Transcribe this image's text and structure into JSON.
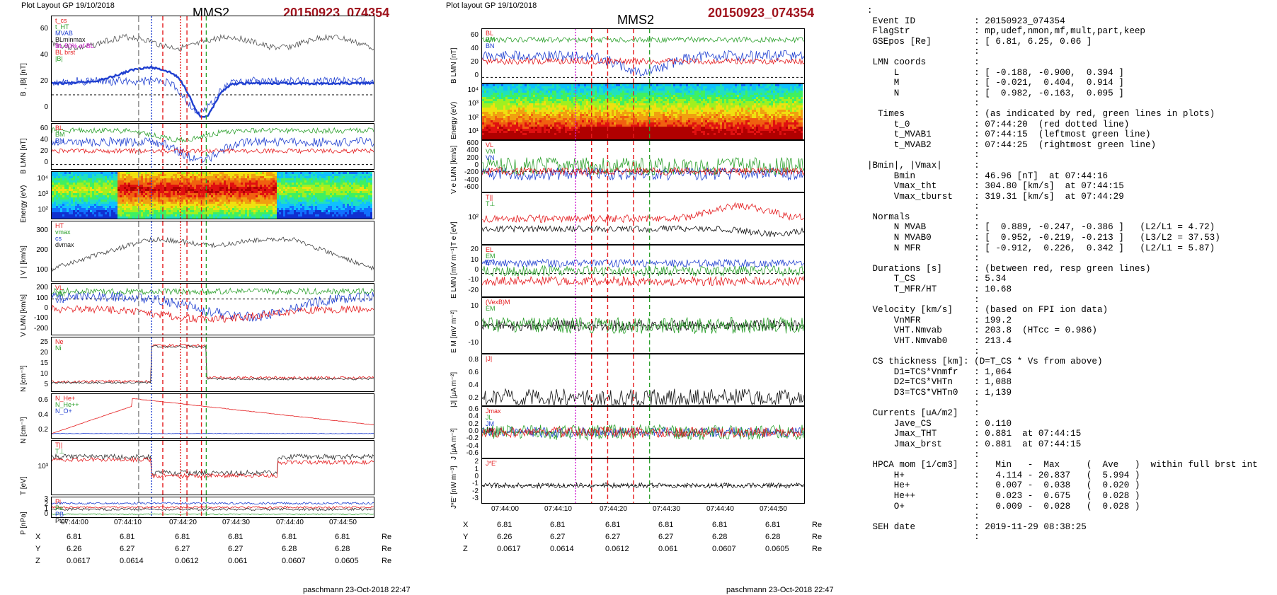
{
  "left": {
    "header_left": "Plot Layout GP 19/10/2018",
    "title": "MMS2",
    "event": "20150923_074354",
    "panels": [
      {
        "ylabel": "B , |B| [nT]",
        "ticks": [
          "60",
          "40",
          "20",
          "0"
        ],
        "legend": [
          "t_cs",
          "t_HT",
          "MVAB",
          "BLminmax",
          "BL 50% of BL",
          "BL brst",
          "|B|"
        ]
      },
      {
        "ylabel": "B LMN [nT]",
        "ticks": [
          "60",
          "40",
          "20",
          "0"
        ],
        "legend": [
          "BL",
          "BM",
          "BN"
        ]
      },
      {
        "ylabel": "Energy (eV)",
        "ticks": [
          "10⁴",
          "10³",
          "10²"
        ],
        "legend": []
      },
      {
        "ylabel": "| V | [km/s]",
        "ticks": [
          "300",
          "200",
          "100"
        ],
        "legend": [
          "HT",
          "vmax",
          "cs",
          "dvmax"
        ]
      },
      {
        "ylabel": "V LMN [km/s]",
        "ticks": [
          "200",
          "100",
          "0",
          "-100",
          "-200"
        ],
        "legend": [
          "VL",
          "VM",
          "VN"
        ]
      },
      {
        "ylabel": "N [cm⁻³]",
        "ticks": [
          "25",
          "20",
          "15",
          "10",
          "5"
        ],
        "legend": [
          "Ne",
          "Ni"
        ]
      },
      {
        "ylabel": "N [cm⁻³]",
        "ticks": [
          "0.6",
          "0.4",
          "0.2"
        ],
        "legend": [
          "N_He+",
          "N_He++",
          "N_O+"
        ]
      },
      {
        "ylabel": "T [eV]",
        "ticks": [
          "10³"
        ],
        "legend": [
          "T||",
          "T⊥"
        ]
      },
      {
        "ylabel": "P [nPa]",
        "ticks": [
          "3",
          "2",
          "1",
          "0"
        ],
        "legend": [
          "Pi",
          "Pe",
          "PB",
          "Ptot"
        ]
      }
    ],
    "time_ticks": [
      "07:44:00",
      "07:44:10",
      "07:44:20",
      "07:44:30",
      "07:44:40",
      "07:44:50"
    ],
    "pos_rows": [
      {
        "label": "X",
        "values": [
          "6.81",
          "6.81",
          "6.81",
          "6.81",
          "6.81",
          "6.81"
        ],
        "unit": "Re"
      },
      {
        "label": "Y",
        "values": [
          "6.26",
          "6.27",
          "6.27",
          "6.27",
          "6.28",
          "6.28"
        ],
        "unit": "Re"
      },
      {
        "label": "Z",
        "values": [
          "0.0617",
          "0.0614",
          "0.0612",
          "0.061",
          "0.0607",
          "0.0605"
        ],
        "unit": "Re"
      }
    ],
    "footer": "paschmann 23-Oct-2018 22:47"
  },
  "middle": {
    "header_left": "Plot layout GP 19/10/2018",
    "title": "MMS2",
    "event": "20150923_074354",
    "panels": [
      {
        "ylabel": "B LMN [nT]",
        "ticks": [
          "60",
          "40",
          "20",
          "0"
        ],
        "legend": [
          "BL",
          "BM",
          "BN"
        ]
      },
      {
        "ylabel": "Energy (eV)",
        "ticks": [
          "10⁴",
          "10³",
          "10²",
          "10¹"
        ],
        "legend": []
      },
      {
        "ylabel": "V e LMN [km/s]",
        "ticks": [
          "600",
          "400",
          "200",
          "0",
          "-200",
          "-400",
          "-600"
        ],
        "legend": [
          "VL",
          "VM",
          "VN"
        ]
      },
      {
        "ylabel": "T e [eV]",
        "ticks": [
          "10²"
        ],
        "legend": [
          "T||",
          "T⊥"
        ]
      },
      {
        "ylabel": "E LMN [mV m⁻¹]",
        "ticks": [
          "20",
          "10",
          "0",
          "-10",
          "-20"
        ],
        "legend": [
          "EL",
          "EM",
          "EN"
        ]
      },
      {
        "ylabel": "E M [mV m⁻²]",
        "ticks": [
          "10",
          "0",
          "-10"
        ],
        "legend": [
          "(VexB)M",
          "EM"
        ]
      },
      {
        "ylabel": "|J| [μA m⁻²]",
        "ticks": [
          "0.8",
          "0.6",
          "0.4",
          "0.2"
        ],
        "legend": [
          "|J|"
        ]
      },
      {
        "ylabel": "J [μA m⁻²]",
        "ticks": [
          "0.6",
          "0.4",
          "0.2",
          "0.0",
          "-0.2",
          "-0.4",
          "-0.6"
        ],
        "legend": [
          "Jmax",
          "JL",
          "JM",
          "JN"
        ]
      },
      {
        "ylabel": "J*E' [nW m⁻³]",
        "ticks": [
          "2",
          "1",
          "0",
          "-1",
          "-2",
          "-3"
        ],
        "legend": [
          "J*E'"
        ]
      }
    ],
    "time_ticks": [
      "07:44:00",
      "07:44:10",
      "07:44:20",
      "07:44:30",
      "07:44:40",
      "07:44:50"
    ],
    "pos_rows": [
      {
        "label": "X",
        "values": [
          "6.81",
          "6.81",
          "6.81",
          "6.81",
          "6.81",
          "6.81"
        ],
        "unit": "Re"
      },
      {
        "label": "Y",
        "values": [
          "6.26",
          "6.27",
          "6.27",
          "6.27",
          "6.28",
          "6.28"
        ],
        "unit": "Re"
      },
      {
        "label": "Z",
        "values": [
          "0.0617",
          "0.0614",
          "0.0612",
          "0.061",
          "0.0607",
          "0.0605"
        ],
        "unit": "Re"
      }
    ],
    "footer": "paschmann 23-Oct-2018 22:47"
  },
  "info_lines": [
    ":",
    " Event ID           : 20150923_074354",
    " FlagStr            : mp,udef,nmon,mf,mult,part,keep",
    " GSEpos [Re]        : [ 6.81, 6.25, 0.06 ]",
    "                    :",
    " LMN coords         :",
    "     L              : [ -0.188, -0.900,  0.394 ]",
    "     M              : [ -0.021,  0.404,  0.914 ]",
    "     N              : [  0.982, -0.163,  0.095 ]",
    "                    :",
    "  Times             : (as indicated by red, green lines in plots)",
    "     t_0            : 07:44:20  (red dotted line)",
    "     t_MVAB1        : 07:44:15  (leftmost green line)",
    "     t_MVAB2        : 07:44:25  (rightmost green line)",
    "                    :",
    "|Bmin|, |Vmax|      :",
    "     Bmin           : 46.96 [nT]  at 07:44:16",
    "     Vmax_tht       : 304.80 [km/s]  at 07:44:15",
    "     Vmax_tburst    : 319.31 [km/s]  at 07:44:29",
    "                    :",
    " Normals            :",
    "     N MVAB         : [  0.889, -0.247, -0.386 ]   (L2/L1 = 4.72)",
    "     N MVAB0        : [  0.952, -0.219, -0.213 ]   (L3/L2 = 37.53)",
    "     N MFR          : [ -0.912,  0.226,  0.342 ]   (L2/L1 = 5.87)",
    "                    :",
    " Durations [s]      : (between red, resp green lines)",
    "     T_CS           : 5.34",
    "     T_MFR/HT       : 10.68",
    "                    :",
    " Velocity [km/s]    : (based on FPI ion data)",
    "     VnMFR          : 199.2",
    "     VHT.Nmvab      : 203.8  (HTcc = 0.986)",
    "     VHT.Nmvab0     : 213.4",
    "                    :",
    " CS thickness [km]: (D=T_CS * Vs from above)",
    "     D1=TCS*Vnmfr   : 1,064",
    "     D2=TCS*VHTn    : 1,088",
    "     D3=TCS*VHTn0   : 1,139",
    "                    :",
    " Currents [uA/m2]   :",
    "     Jave_CS        : 0.110",
    "     Jmax_THT       : 0.881  at 07:44:15",
    "     Jmax_brst      : 0.881  at 07:44:15",
    "                    :",
    " HPCA mom [1/cm3]   :   Min   -  Max     (  Ave   )  within full brst int",
    "     H+             :   4.114 - 20.837   (  5.994 )",
    "     He+            :   0.007 -  0.038   (  0.020 )",
    "     He++           :   0.023 -  0.675   (  0.028 )",
    "     O+             :   0.009 -  0.028   (  0.028 )",
    "                    :",
    " SEH date           : 2019-11-29 08:38:25",
    "                    :"
  ],
  "colors": {
    "event": "#a0141e",
    "red": "#e41a1c",
    "green": "#2ca02c",
    "blue": "#1f3fd0",
    "black": "#111111",
    "magenta": "#d020d0"
  }
}
